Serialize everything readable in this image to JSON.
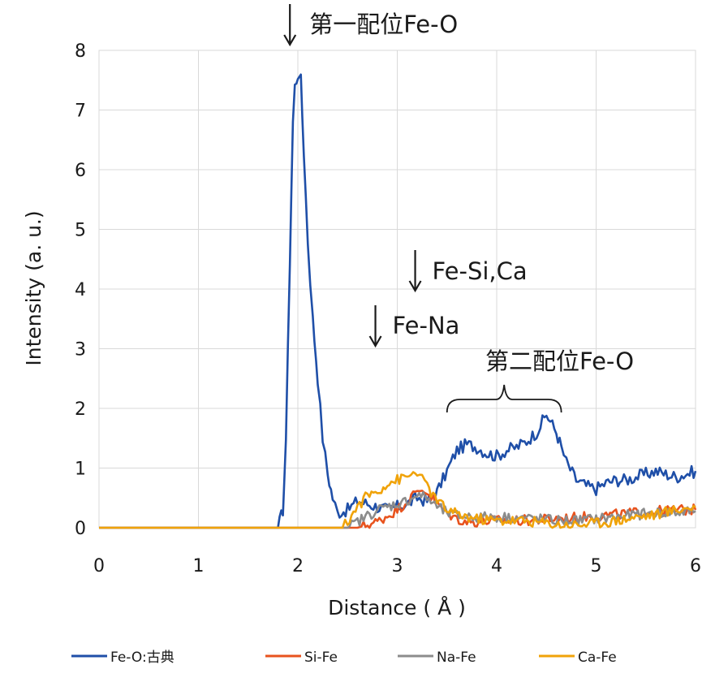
{
  "chart_data": {
    "type": "line",
    "title": "",
    "xlabel": "Distance ( Å )",
    "ylabel": "Intensity (a. u.)",
    "xlim": [
      0,
      6
    ],
    "ylim": [
      0,
      8
    ],
    "x_ticks": [
      "0",
      "1",
      "2",
      "3",
      "4",
      "5",
      "6"
    ],
    "y_ticks": [
      "0",
      "1",
      "2",
      "3",
      "4",
      "5",
      "6",
      "7",
      "8"
    ],
    "grid": true,
    "legend_position": "bottom",
    "annotations": [
      {
        "text": "第一配位Fe-O",
        "arrow_x": 1.92
      },
      {
        "text": "Fe-Si,Ca",
        "arrow_x": 3.18
      },
      {
        "text": "Fe-Na",
        "arrow_x": 2.78
      },
      {
        "text": "第二配位Fe-O",
        "bracket_x": [
          3.5,
          4.65
        ]
      }
    ],
    "series": [
      {
        "name": "Fe-O:古典",
        "color": "#1f4fa8",
        "points": [
          [
            0,
            0
          ],
          [
            1.8,
            0
          ],
          [
            1.85,
            0.3
          ],
          [
            1.88,
            1.5
          ],
          [
            1.92,
            4.5
          ],
          [
            1.95,
            6.8
          ],
          [
            1.97,
            7.4
          ],
          [
            2.0,
            7.6
          ],
          [
            2.03,
            7.5
          ],
          [
            2.06,
            6.3
          ],
          [
            2.1,
            4.8
          ],
          [
            2.15,
            3.5
          ],
          [
            2.2,
            2.5
          ],
          [
            2.25,
            1.5
          ],
          [
            2.3,
            0.9
          ],
          [
            2.35,
            0.5
          ],
          [
            2.4,
            0.25
          ],
          [
            2.5,
            0.3
          ],
          [
            2.6,
            0.45
          ],
          [
            2.7,
            0.4
          ],
          [
            2.8,
            0.35
          ],
          [
            2.9,
            0.3
          ],
          [
            3.0,
            0.35
          ],
          [
            3.1,
            0.4
          ],
          [
            3.2,
            0.5
          ],
          [
            3.3,
            0.45
          ],
          [
            3.4,
            0.6
          ],
          [
            3.5,
            0.95
          ],
          [
            3.6,
            1.3
          ],
          [
            3.7,
            1.4
          ],
          [
            3.8,
            1.35
          ],
          [
            3.9,
            1.25
          ],
          [
            4.0,
            1.2
          ],
          [
            4.1,
            1.3
          ],
          [
            4.2,
            1.35
          ],
          [
            4.3,
            1.45
          ],
          [
            4.4,
            1.6
          ],
          [
            4.5,
            1.9
          ],
          [
            4.6,
            1.6
          ],
          [
            4.65,
            1.35
          ],
          [
            4.7,
            1.1
          ],
          [
            4.8,
            0.8
          ],
          [
            4.9,
            0.7
          ],
          [
            5.0,
            0.65
          ],
          [
            5.1,
            0.75
          ],
          [
            5.2,
            0.8
          ],
          [
            5.3,
            0.8
          ],
          [
            5.4,
            0.85
          ],
          [
            5.5,
            0.9
          ],
          [
            5.6,
            0.95
          ],
          [
            5.7,
            0.9
          ],
          [
            5.8,
            0.85
          ],
          [
            5.9,
            0.9
          ],
          [
            6.0,
            0.95
          ]
        ]
      },
      {
        "name": "Si-Fe",
        "color": "#e8531e",
        "points": [
          [
            0,
            0
          ],
          [
            2.6,
            0
          ],
          [
            2.7,
            0.05
          ],
          [
            2.8,
            0.1
          ],
          [
            2.9,
            0.2
          ],
          [
            3.0,
            0.3
          ],
          [
            3.1,
            0.45
          ],
          [
            3.2,
            0.6
          ],
          [
            3.25,
            0.65
          ],
          [
            3.3,
            0.6
          ],
          [
            3.4,
            0.4
          ],
          [
            3.5,
            0.25
          ],
          [
            3.6,
            0.15
          ],
          [
            3.7,
            0.1
          ],
          [
            3.8,
            0.1
          ],
          [
            4.0,
            0.12
          ],
          [
            4.2,
            0.12
          ],
          [
            4.4,
            0.13
          ],
          [
            4.6,
            0.15
          ],
          [
            4.8,
            0.17
          ],
          [
            5.0,
            0.2
          ],
          [
            5.2,
            0.22
          ],
          [
            5.4,
            0.25
          ],
          [
            5.6,
            0.27
          ],
          [
            5.8,
            0.3
          ],
          [
            6.0,
            0.3
          ]
        ]
      },
      {
        "name": "Na-Fe",
        "color": "#8c8c8c",
        "points": [
          [
            0,
            0
          ],
          [
            2.5,
            0
          ],
          [
            2.6,
            0.1
          ],
          [
            2.7,
            0.2
          ],
          [
            2.8,
            0.3
          ],
          [
            2.9,
            0.35
          ],
          [
            3.0,
            0.4
          ],
          [
            3.1,
            0.45
          ],
          [
            3.2,
            0.55
          ],
          [
            3.3,
            0.5
          ],
          [
            3.4,
            0.35
          ],
          [
            3.5,
            0.25
          ],
          [
            3.6,
            0.2
          ],
          [
            3.8,
            0.18
          ],
          [
            4.0,
            0.18
          ],
          [
            4.2,
            0.17
          ],
          [
            4.4,
            0.15
          ],
          [
            4.6,
            0.12
          ],
          [
            4.8,
            0.12
          ],
          [
            5.0,
            0.15
          ],
          [
            5.2,
            0.18
          ],
          [
            5.4,
            0.22
          ],
          [
            5.6,
            0.25
          ],
          [
            5.8,
            0.25
          ],
          [
            6.0,
            0.28
          ]
        ]
      },
      {
        "name": "Ca-Fe",
        "color": "#f0a30a",
        "points": [
          [
            0,
            0
          ],
          [
            2.45,
            0
          ],
          [
            2.5,
            0.1
          ],
          [
            2.6,
            0.35
          ],
          [
            2.7,
            0.55
          ],
          [
            2.8,
            0.6
          ],
          [
            2.9,
            0.75
          ],
          [
            3.0,
            0.8
          ],
          [
            3.1,
            0.85
          ],
          [
            3.2,
            0.95
          ],
          [
            3.25,
            0.8
          ],
          [
            3.3,
            0.7
          ],
          [
            3.4,
            0.45
          ],
          [
            3.5,
            0.3
          ],
          [
            3.6,
            0.22
          ],
          [
            3.8,
            0.15
          ],
          [
            4.0,
            0.12
          ],
          [
            4.2,
            0.12
          ],
          [
            4.4,
            0.1
          ],
          [
            4.6,
            0.05
          ],
          [
            4.8,
            0.05
          ],
          [
            5.0,
            0.08
          ],
          [
            5.2,
            0.12
          ],
          [
            5.4,
            0.18
          ],
          [
            5.6,
            0.22
          ],
          [
            5.8,
            0.3
          ],
          [
            6.0,
            0.35
          ]
        ]
      }
    ]
  }
}
